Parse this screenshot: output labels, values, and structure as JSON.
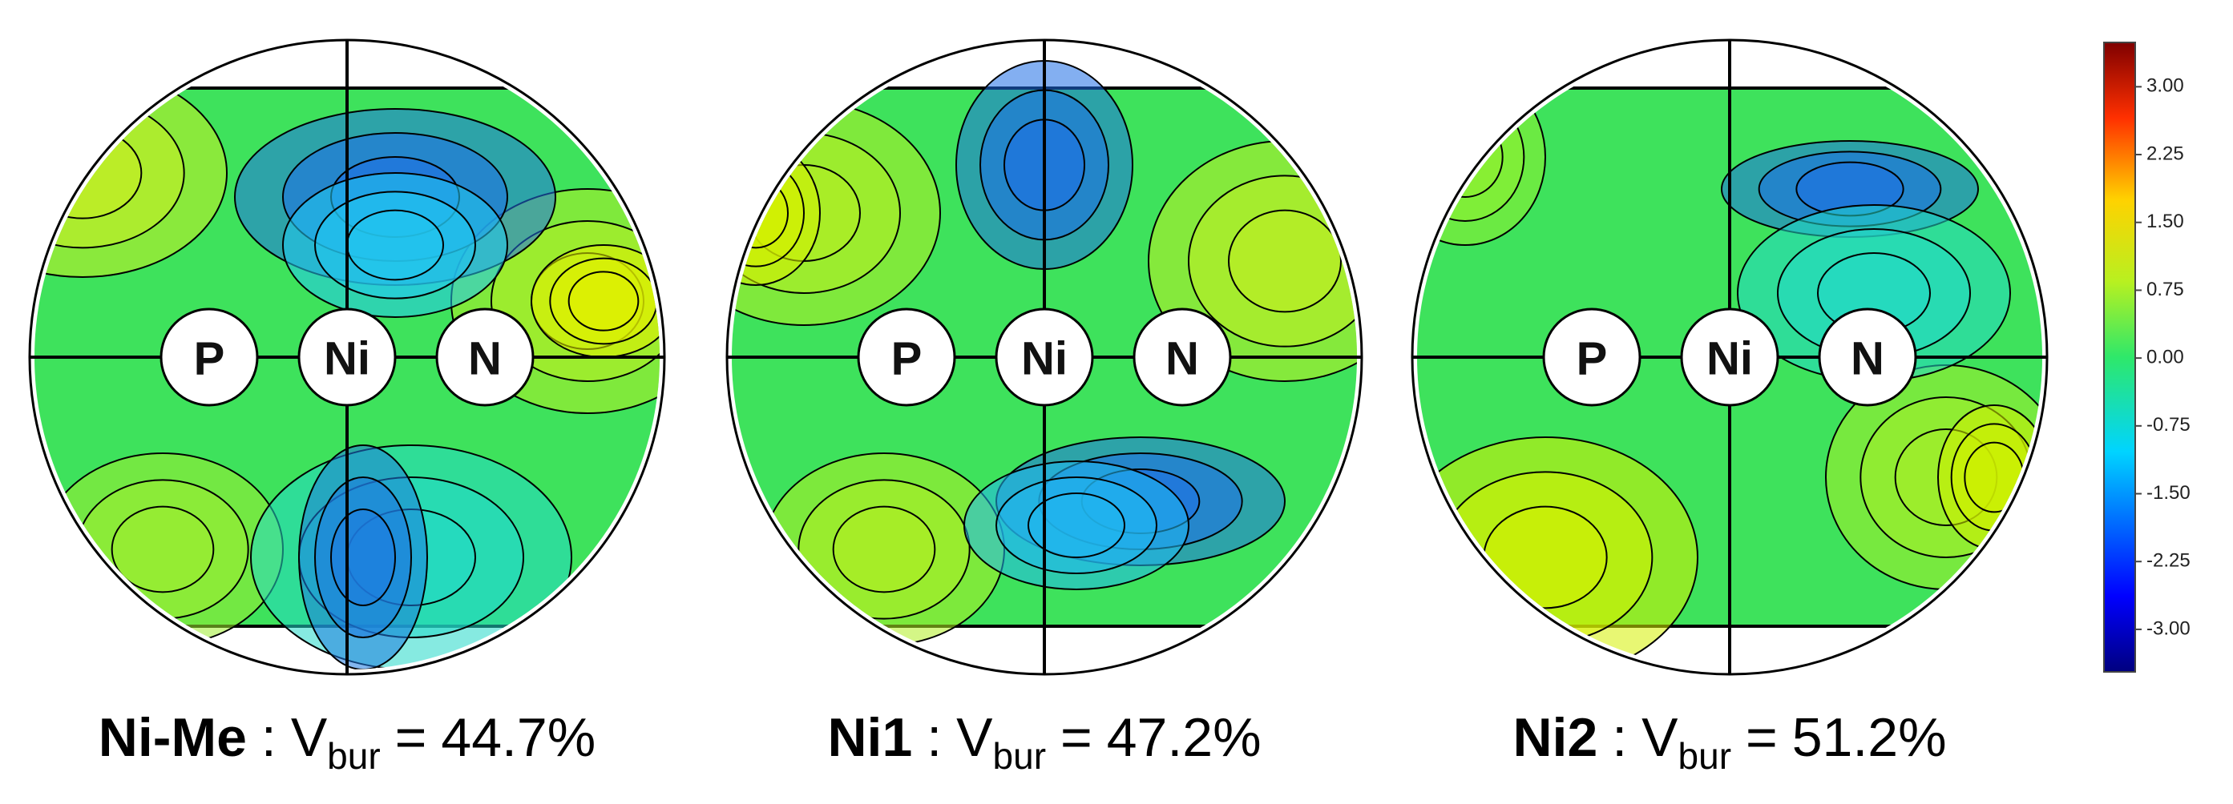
{
  "chart_data": {
    "type": "steric-map",
    "atoms": [
      "P",
      "Ni",
      "N"
    ],
    "separator": ":",
    "equals": "=",
    "panels": [
      {
        "name": "Ni-Me",
        "quantity": "V",
        "subscript": "bur",
        "values": [
          44.7
        ],
        "value_labels": [
          "44.7%"
        ]
      },
      {
        "name": "Ni1",
        "quantity": "V",
        "subscript": "bur",
        "values": [
          47.2
        ],
        "value_labels": [
          "47.2%"
        ]
      },
      {
        "name": "Ni2",
        "quantity": "V",
        "subscript": "bur",
        "values": [
          51.2
        ],
        "value_labels": [
          "51.2%"
        ]
      }
    ],
    "colorbar": {
      "ylim": [
        -3.47,
        3.49
      ],
      "yticks": [
        {
          "value": -3,
          "label": "-3.00"
        },
        {
          "value": -2.25,
          "label": "-2.25"
        },
        {
          "value": -1.5,
          "label": "-1.50"
        },
        {
          "value": -0.75,
          "label": "-0.75"
        },
        {
          "value": 0,
          "label": "0.00"
        },
        {
          "value": 0.75,
          "label": "0.75"
        },
        {
          "value": 1.5,
          "label": "1.50"
        },
        {
          "value": 2.25,
          "label": "2.25"
        },
        {
          "value": 3,
          "label": "3.00"
        }
      ]
    }
  }
}
